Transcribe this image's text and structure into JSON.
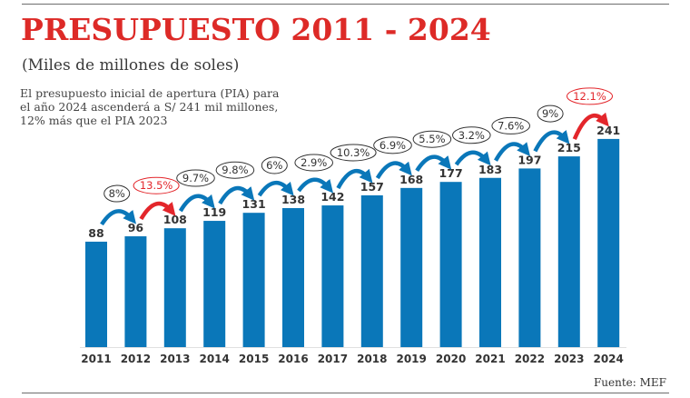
{
  "header": {
    "title": "PRESUPUESTO 2011 - 2024",
    "subtitle": "(Miles de millones de soles)",
    "description": "El presupuesto inicial de apertura (PIA) para\nel año 2024 ascenderá a S/ 241 mil millones,\n12% más que el PIA 2023"
  },
  "footer": {
    "source": "Fuente: MEF"
  },
  "colors": {
    "bar": "#0a77b9",
    "highlight": "#e3262b",
    "title": "#dd2a27",
    "text": "#333333"
  },
  "chart_data": {
    "type": "bar",
    "title": "PRESUPUESTO 2011 - 2024",
    "subtitle": "(Miles de millones de soles)",
    "xlabel": "",
    "ylabel": "Miles de millones de soles",
    "grid": false,
    "categories": [
      "2011",
      "2012",
      "2013",
      "2014",
      "2015",
      "2016",
      "2017",
      "2018",
      "2019",
      "2020",
      "2021",
      "2022",
      "2023",
      "2024"
    ],
    "values": [
      88,
      96,
      108,
      119,
      131,
      138,
      142,
      157,
      168,
      177,
      183,
      197,
      215,
      241
    ],
    "growth_annotations": [
      {
        "from": "2011",
        "to": "2012",
        "label": "8%",
        "highlight": false
      },
      {
        "from": "2012",
        "to": "2013",
        "label": "13.5%",
        "highlight": true
      },
      {
        "from": "2013",
        "to": "2014",
        "label": "9.7%",
        "highlight": false
      },
      {
        "from": "2014",
        "to": "2015",
        "label": "9.8%",
        "highlight": false
      },
      {
        "from": "2015",
        "to": "2016",
        "label": "6%",
        "highlight": false
      },
      {
        "from": "2016",
        "to": "2017",
        "label": "2.9%",
        "highlight": false
      },
      {
        "from": "2017",
        "to": "2018",
        "label": "10.3%",
        "highlight": false
      },
      {
        "from": "2018",
        "to": "2019",
        "label": "6.9%",
        "highlight": false
      },
      {
        "from": "2019",
        "to": "2020",
        "label": "5.5%",
        "highlight": false
      },
      {
        "from": "2020",
        "to": "2021",
        "label": "3.2%",
        "highlight": false
      },
      {
        "from": "2021",
        "to": "2022",
        "label": "7.6%",
        "highlight": false
      },
      {
        "from": "2022",
        "to": "2023",
        "label": "9%",
        "highlight": false
      },
      {
        "from": "2023",
        "to": "2024",
        "label": "12.1%",
        "highlight": true
      }
    ],
    "source": "Fuente: MEF"
  }
}
